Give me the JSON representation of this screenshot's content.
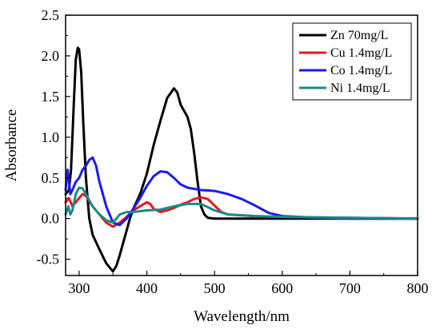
{
  "chart_data": {
    "type": "line",
    "xlabel": "Wavelength/nm",
    "ylabel": "Absorbance",
    "xlim": [
      280,
      800
    ],
    "ylim": [
      -0.7,
      2.5
    ],
    "xticks": [
      300,
      400,
      500,
      600,
      700,
      800
    ],
    "xtick_labels": [
      "300",
      "400",
      "500",
      "600",
      "700",
      "800"
    ],
    "yticks": [
      -0.5,
      0.0,
      0.5,
      1.0,
      1.5,
      2.0,
      2.5
    ],
    "ytick_labels": [
      "-0.5",
      "0.0",
      "0.5",
      "1.0",
      "1.5",
      "2.0",
      "2.5"
    ],
    "legend_position": "top-right",
    "grid": false,
    "series": [
      {
        "name": "Zn 70mg/L",
        "color": "#000000",
        "points": [
          [
            280,
            0.3
          ],
          [
            285,
            0.35
          ],
          [
            288,
            0.6
          ],
          [
            292,
            1.4
          ],
          [
            295,
            1.95
          ],
          [
            298,
            2.1
          ],
          [
            300,
            2.08
          ],
          [
            303,
            1.8
          ],
          [
            306,
            1.2
          ],
          [
            310,
            0.5
          ],
          [
            315,
            0.0
          ],
          [
            320,
            -0.2
          ],
          [
            330,
            -0.38
          ],
          [
            340,
            -0.55
          ],
          [
            350,
            -0.65
          ],
          [
            355,
            -0.58
          ],
          [
            360,
            -0.45
          ],
          [
            365,
            -0.3
          ],
          [
            370,
            -0.15
          ],
          [
            375,
            0.0
          ],
          [
            380,
            0.12
          ],
          [
            390,
            0.3
          ],
          [
            400,
            0.55
          ],
          [
            410,
            0.9
          ],
          [
            420,
            1.2
          ],
          [
            430,
            1.48
          ],
          [
            440,
            1.6
          ],
          [
            445,
            1.55
          ],
          [
            450,
            1.4
          ],
          [
            460,
            1.25
          ],
          [
            465,
            1.1
          ],
          [
            470,
            0.8
          ],
          [
            475,
            0.45
          ],
          [
            480,
            0.15
          ],
          [
            485,
            0.05
          ],
          [
            490,
            0.01
          ],
          [
            500,
            0.0
          ],
          [
            600,
            0.0
          ],
          [
            700,
            0.0
          ],
          [
            800,
            0.0
          ]
        ]
      },
      {
        "name": "Cu 1.4mg/L",
        "color": "#e8141e",
        "points": [
          [
            280,
            0.2
          ],
          [
            285,
            0.25
          ],
          [
            290,
            0.15
          ],
          [
            295,
            0.2
          ],
          [
            300,
            0.25
          ],
          [
            305,
            0.3
          ],
          [
            310,
            0.28
          ],
          [
            320,
            0.15
          ],
          [
            330,
            0.05
          ],
          [
            340,
            -0.05
          ],
          [
            350,
            -0.1
          ],
          [
            360,
            -0.05
          ],
          [
            370,
            0.02
          ],
          [
            380,
            0.1
          ],
          [
            390,
            0.15
          ],
          [
            400,
            0.2
          ],
          [
            405,
            0.18
          ],
          [
            410,
            0.12
          ],
          [
            420,
            0.08
          ],
          [
            430,
            0.1
          ],
          [
            440,
            0.13
          ],
          [
            450,
            0.17
          ],
          [
            460,
            0.2
          ],
          [
            470,
            0.24
          ],
          [
            480,
            0.26
          ],
          [
            490,
            0.24
          ],
          [
            500,
            0.16
          ],
          [
            510,
            0.08
          ],
          [
            520,
            0.05
          ],
          [
            540,
            0.04
          ],
          [
            560,
            0.03
          ],
          [
            600,
            0.02
          ],
          [
            700,
            0.01
          ],
          [
            800,
            0.0
          ]
        ]
      },
      {
        "name": "Co 1.4mg/L",
        "color": "#1a1af0",
        "points": [
          [
            280,
            0.35
          ],
          [
            283,
            0.6
          ],
          [
            287,
            0.3
          ],
          [
            290,
            0.35
          ],
          [
            295,
            0.45
          ],
          [
            300,
            0.5
          ],
          [
            305,
            0.6
          ],
          [
            310,
            0.65
          ],
          [
            315,
            0.72
          ],
          [
            320,
            0.75
          ],
          [
            325,
            0.65
          ],
          [
            330,
            0.45
          ],
          [
            340,
            0.15
          ],
          [
            350,
            -0.05
          ],
          [
            360,
            -0.08
          ],
          [
            370,
            0.0
          ],
          [
            380,
            0.12
          ],
          [
            390,
            0.25
          ],
          [
            400,
            0.4
          ],
          [
            410,
            0.52
          ],
          [
            420,
            0.58
          ],
          [
            430,
            0.57
          ],
          [
            440,
            0.5
          ],
          [
            450,
            0.42
          ],
          [
            460,
            0.38
          ],
          [
            480,
            0.35
          ],
          [
            500,
            0.34
          ],
          [
            520,
            0.3
          ],
          [
            540,
            0.24
          ],
          [
            560,
            0.16
          ],
          [
            580,
            0.07
          ],
          [
            600,
            0.03
          ],
          [
            650,
            0.01
          ],
          [
            700,
            0.0
          ],
          [
            800,
            0.0
          ]
        ]
      },
      {
        "name": "Ni 1.4mg/L",
        "color": "#1a8a8a",
        "points": [
          [
            280,
            0.05
          ],
          [
            284,
            0.15
          ],
          [
            287,
            0.05
          ],
          [
            290,
            0.1
          ],
          [
            295,
            0.3
          ],
          [
            300,
            0.38
          ],
          [
            305,
            0.37
          ],
          [
            310,
            0.3
          ],
          [
            320,
            0.15
          ],
          [
            330,
            0.05
          ],
          [
            340,
            -0.02
          ],
          [
            350,
            -0.05
          ],
          [
            360,
            0.05
          ],
          [
            370,
            0.08
          ],
          [
            380,
            0.08
          ],
          [
            390,
            0.09
          ],
          [
            400,
            0.1
          ],
          [
            420,
            0.11
          ],
          [
            440,
            0.15
          ],
          [
            460,
            0.18
          ],
          [
            480,
            0.18
          ],
          [
            500,
            0.1
          ],
          [
            520,
            0.05
          ],
          [
            540,
            0.04
          ],
          [
            560,
            0.03
          ],
          [
            600,
            0.02
          ],
          [
            700,
            0.01
          ],
          [
            800,
            0.0
          ]
        ]
      }
    ]
  }
}
